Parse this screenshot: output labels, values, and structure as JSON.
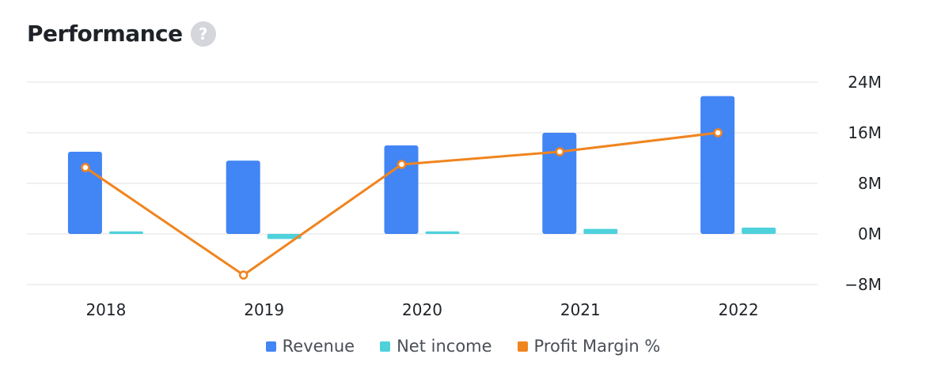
{
  "header": {
    "title": "Performance",
    "help_glyph": "?",
    "help_icon": "question-circle-icon"
  },
  "colors": {
    "revenue": "#4285f4",
    "net_income": "#4fd1dc",
    "profit_margin": "#f0841f",
    "grid": "#ececec",
    "text": "#1f2328",
    "legend_text": "#4a4f57"
  },
  "chart_data": {
    "type": "bar",
    "title": "Performance",
    "categories": [
      "2018",
      "2019",
      "2020",
      "2021",
      "2022"
    ],
    "series": [
      {
        "name": "Revenue",
        "type": "bar",
        "axis": "right",
        "values": [
          13.0,
          11.6,
          14.0,
          16.0,
          21.8
        ]
      },
      {
        "name": "Net income",
        "type": "bar",
        "axis": "right",
        "values": [
          0.4,
          -0.8,
          0.4,
          0.8,
          1.0
        ]
      },
      {
        "name": "Profit Margin %",
        "type": "line",
        "axis": "secondary-hidden",
        "values": [
          10.5,
          -6.5,
          11.0,
          13.0,
          16.0
        ]
      }
    ],
    "y_axis": {
      "position": "right",
      "ticks": [
        "24M",
        "16M",
        "8M",
        "0M",
        "−8M"
      ],
      "tick_values": [
        24,
        16,
        8,
        0,
        -8
      ],
      "ylim": [
        -8,
        24
      ],
      "unit": "M"
    },
    "grid": true,
    "legend": {
      "position": "bottom-center",
      "entries": [
        "Revenue",
        "Net income",
        "Profit Margin %"
      ]
    }
  }
}
